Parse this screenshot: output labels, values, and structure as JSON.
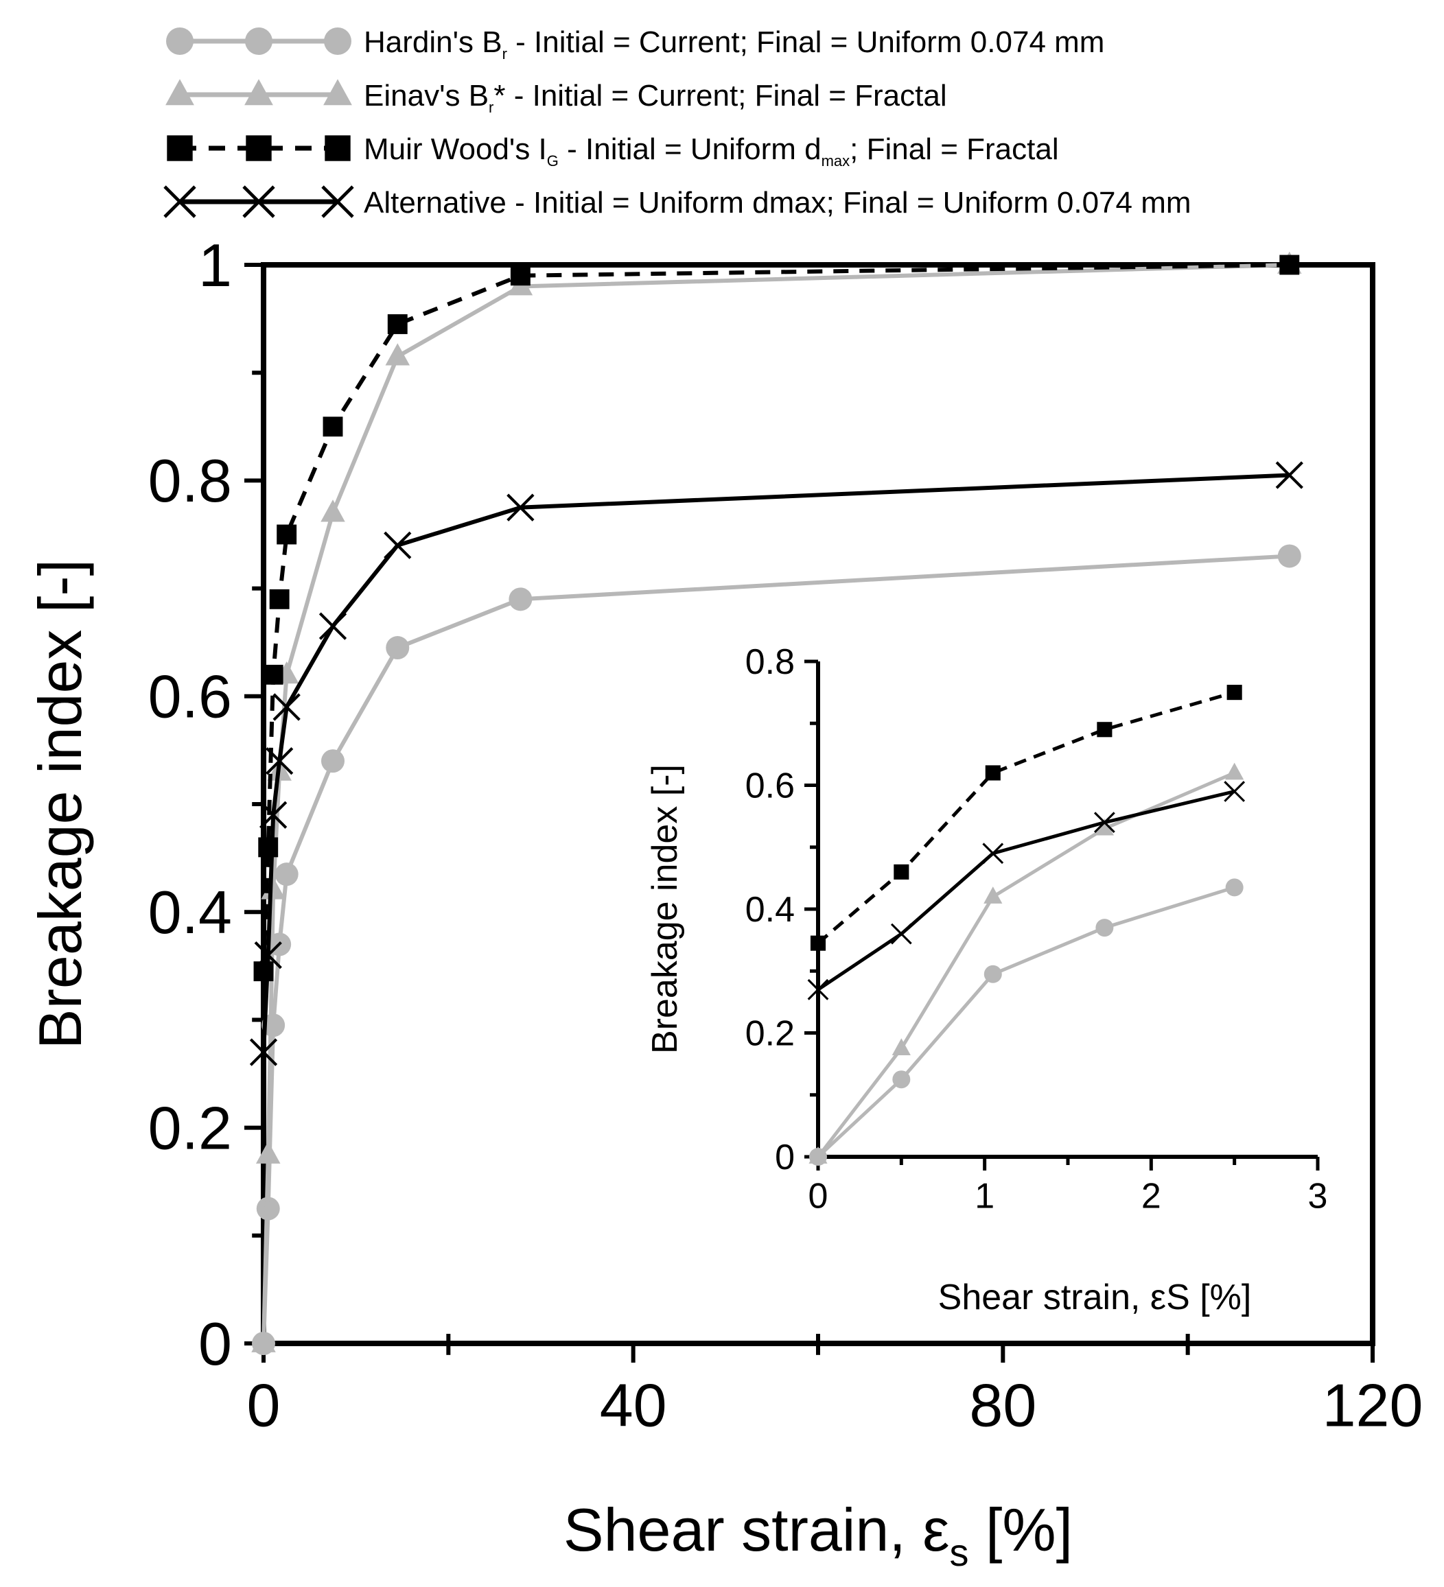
{
  "chart_data": [
    {
      "id": "main",
      "type": "line",
      "xlabel_main": "Shear strain, ε",
      "xlabel_sub": "s",
      "xlabel_unit": "[%]",
      "ylabel": "Breakage index [-]",
      "xlim": [
        0,
        120
      ],
      "ylim": [
        0,
        1
      ],
      "xticks": [
        0,
        40,
        80,
        120
      ],
      "yticks": [
        0,
        0.2,
        0.4,
        0.6,
        0.8,
        1
      ],
      "ytick_labels": [
        "0",
        "0.2",
        "0.4",
        "0.6",
        "0.8",
        "1"
      ],
      "series": [
        {
          "key": "hardin",
          "legend": {
            "pre": "Hardin's B",
            "sub": "r",
            "post": " - Initial = Current; Final = Uniform 0.074 mm"
          },
          "color": "#b7b7b7",
          "marker": "circle",
          "dash": false,
          "x": [
            0,
            0.5,
            1.05,
            1.72,
            2.5,
            7.5,
            14.5,
            27.8,
            111
          ],
          "y": [
            0,
            0.125,
            0.295,
            0.37,
            0.435,
            0.54,
            0.645,
            0.69,
            0.73
          ]
        },
        {
          "key": "einav",
          "legend": {
            "pre": "Einav's B",
            "sub": "r",
            "post": "* - Initial = Current; Final = Fractal"
          },
          "color": "#b7b7b7",
          "marker": "triangle",
          "dash": false,
          "x": [
            0,
            0.5,
            1.05,
            1.72,
            2.5,
            7.5,
            14.5,
            27.8,
            111
          ],
          "y": [
            0,
            0.175,
            0.42,
            0.53,
            0.62,
            0.77,
            0.915,
            0.98,
            1.0
          ]
        },
        {
          "key": "muirwood",
          "legend": {
            "pre": "Muir Wood's I",
            "sub": "G",
            "post": " - Initial = Uniform d",
            "sub2": "max",
            "post2": "; Final = Fractal"
          },
          "color": "#000000",
          "marker": "square",
          "dash": true,
          "x": [
            0,
            0.5,
            1.05,
            1.72,
            2.5,
            7.5,
            14.5,
            27.8,
            111
          ],
          "y": [
            0.345,
            0.46,
            0.62,
            0.69,
            0.75,
            0.85,
            0.945,
            0.99,
            1.0
          ]
        },
        {
          "key": "alternative",
          "legend": {
            "pre": "Alternative - Initial = Uniform dmax; Final = Uniform 0.074 mm"
          },
          "color": "#000000",
          "marker": "x",
          "dash": false,
          "x": [
            0,
            0.5,
            1.05,
            1.72,
            2.5,
            7.5,
            14.5,
            27.8,
            111
          ],
          "y": [
            0.27,
            0.36,
            0.49,
            0.54,
            0.59,
            0.665,
            0.74,
            0.775,
            0.805
          ]
        }
      ]
    },
    {
      "id": "inset",
      "type": "line",
      "xlabel": "Shear strain, εS [%]",
      "ylabel": "Breakage index [-]",
      "xlim": [
        0,
        3
      ],
      "ylim": [
        0,
        0.8
      ],
      "xticks": [
        0,
        1,
        2,
        3
      ],
      "yticks": [
        0,
        0.2,
        0.4,
        0.6,
        0.8
      ],
      "ytick_labels": [
        "0",
        "0.2",
        "0.4",
        "0.6",
        "0.8"
      ],
      "series": [
        {
          "key": "hardin",
          "color": "#b7b7b7",
          "marker": "circle",
          "dash": false,
          "x": [
            0,
            0.5,
            1.05,
            1.72,
            2.5
          ],
          "y": [
            0,
            0.125,
            0.295,
            0.37,
            0.435
          ]
        },
        {
          "key": "einav",
          "color": "#b7b7b7",
          "marker": "triangle",
          "dash": false,
          "x": [
            0,
            0.5,
            1.05,
            1.72,
            2.5
          ],
          "y": [
            0,
            0.175,
            0.42,
            0.53,
            0.62
          ]
        },
        {
          "key": "muirwood",
          "color": "#000000",
          "marker": "square",
          "dash": true,
          "x": [
            0,
            0.5,
            1.05,
            1.72,
            2.5
          ],
          "y": [
            0.345,
            0.46,
            0.62,
            0.69,
            0.75
          ]
        },
        {
          "key": "alternative",
          "color": "#000000",
          "marker": "x",
          "dash": false,
          "x": [
            0,
            0.5,
            1.05,
            1.72,
            2.5
          ],
          "y": [
            0.27,
            0.36,
            0.49,
            0.54,
            0.59
          ]
        }
      ]
    }
  ]
}
